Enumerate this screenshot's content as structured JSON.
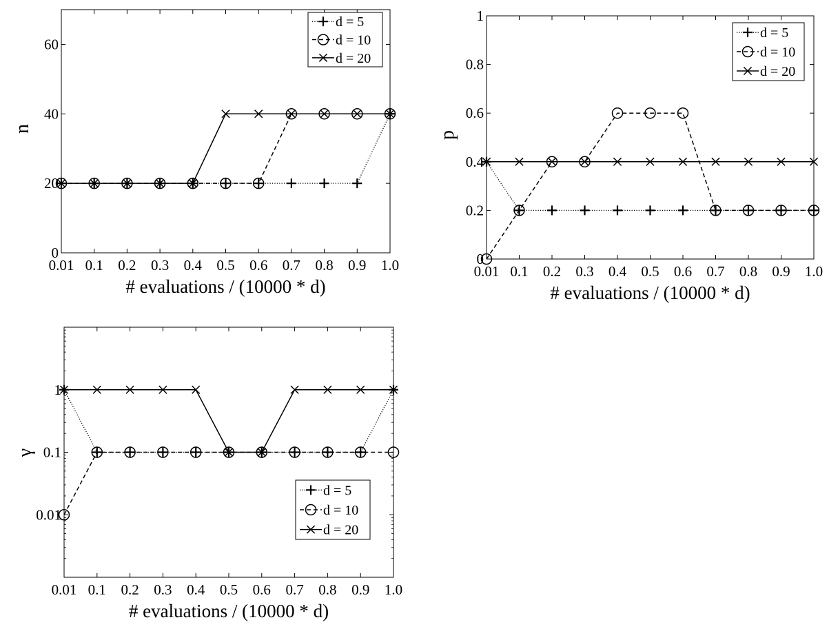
{
  "chart_data": [
    {
      "id": "n",
      "type": "line",
      "ylabel": "n",
      "xlabel": "# evaluations / (10000 * d)",
      "x": [
        "0.01",
        "0.1",
        "0.2",
        "0.3",
        "0.4",
        "0.5",
        "0.6",
        "0.7",
        "0.8",
        "0.9",
        "1.0"
      ],
      "yscale": "linear",
      "ylim": [
        0,
        70
      ],
      "yticks": [
        0,
        20,
        40,
        60
      ],
      "ytick_labels": [
        "0",
        "20",
        "40",
        "60"
      ],
      "legend_position": "top-right",
      "series": [
        {
          "name": "d = 5",
          "marker": "plus",
          "linestyle": "dotted",
          "values": [
            20,
            20,
            20,
            20,
            20,
            20,
            20,
            20,
            20,
            20,
            40
          ]
        },
        {
          "name": "d = 10",
          "marker": "circle",
          "linestyle": "dashed",
          "values": [
            20,
            20,
            20,
            20,
            20,
            20,
            20,
            40,
            40,
            40,
            40
          ]
        },
        {
          "name": "d = 20",
          "marker": "x",
          "linestyle": "solid",
          "values": [
            20,
            20,
            20,
            20,
            20,
            40,
            40,
            40,
            40,
            40,
            40
          ]
        }
      ]
    },
    {
      "id": "p",
      "type": "line",
      "ylabel": "p",
      "xlabel": "# evaluations / (10000 * d)",
      "x": [
        "0.01",
        "0.1",
        "0.2",
        "0.3",
        "0.4",
        "0.5",
        "0.6",
        "0.7",
        "0.8",
        "0.9",
        "1.0"
      ],
      "yscale": "linear",
      "ylim": [
        0,
        1
      ],
      "yticks": [
        0,
        0.2,
        0.4,
        0.6,
        0.8,
        1
      ],
      "ytick_labels": [
        "0",
        "0.2",
        "0.4",
        "0.6",
        "0.8",
        "1"
      ],
      "legend_position": "top-right",
      "series": [
        {
          "name": "d = 5",
          "marker": "plus",
          "linestyle": "dotted",
          "values": [
            0.4,
            0.2,
            0.2,
            0.2,
            0.2,
            0.2,
            0.2,
            0.2,
            0.2,
            0.2,
            0.2
          ]
        },
        {
          "name": "d = 10",
          "marker": "circle",
          "linestyle": "dashed",
          "values": [
            0,
            0.2,
            0.4,
            0.4,
            0.6,
            0.6,
            0.6,
            0.2,
            0.2,
            0.2,
            0.2
          ]
        },
        {
          "name": "d = 20",
          "marker": "x",
          "linestyle": "solid",
          "values": [
            0.4,
            0.4,
            0.4,
            0.4,
            0.4,
            0.4,
            0.4,
            0.4,
            0.4,
            0.4,
            0.4
          ]
        }
      ]
    },
    {
      "id": "gamma",
      "type": "line",
      "ylabel": "γ",
      "xlabel": "# evaluations / (10000 * d)",
      "x": [
        "0.01",
        "0.1",
        "0.2",
        "0.3",
        "0.4",
        "0.5",
        "0.6",
        "0.7",
        "0.8",
        "0.9",
        "1.0"
      ],
      "yscale": "log",
      "ylim": [
        0.001,
        10
      ],
      "yticks": [
        0.01,
        0.1,
        1
      ],
      "ytick_labels": [
        "0.01",
        "0.1",
        "1"
      ],
      "legend_position": "bottom-right",
      "series": [
        {
          "name": "d = 5",
          "marker": "plus",
          "linestyle": "dotted",
          "values": [
            1,
            0.1,
            0.1,
            0.1,
            0.1,
            0.1,
            0.1,
            0.1,
            0.1,
            0.1,
            1
          ]
        },
        {
          "name": "d = 10",
          "marker": "circle",
          "linestyle": "dashed",
          "values": [
            0.01,
            0.1,
            0.1,
            0.1,
            0.1,
            0.1,
            0.1,
            0.1,
            0.1,
            0.1,
            0.1
          ]
        },
        {
          "name": "d = 20",
          "marker": "x",
          "linestyle": "solid",
          "values": [
            1,
            1,
            1,
            1,
            1,
            0.1,
            0.1,
            1,
            1,
            1,
            1
          ]
        }
      ]
    }
  ]
}
